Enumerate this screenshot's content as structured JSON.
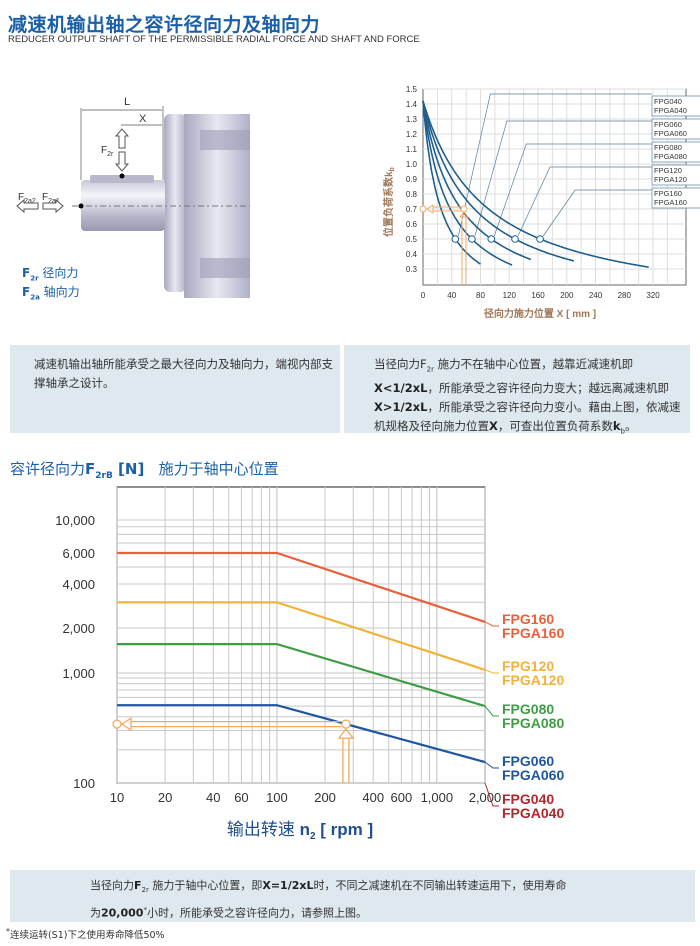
{
  "header": {
    "title": "减速机输出轴之容许径向力及轴向力",
    "subtitle": "REDUCER OUTPUT SHAFT OF THE PERMISSIBLE RADIAL FORCE AND SHAFT AND FORCE"
  },
  "shaft_diagram": {
    "label_L": "L",
    "label_X": "X",
    "label_F2r": "F",
    "label_F2r_sub": "2r",
    "label_F2a2": "F",
    "label_F2a2_sub": "2a2",
    "label_F2a1": "F",
    "label_F2a1_sub": "2a1",
    "legend": [
      {
        "symbol": "F",
        "sub": "2r",
        "text": "径向力"
      },
      {
        "symbol": "F",
        "sub": "2a",
        "text": "轴向力"
      }
    ]
  },
  "info_left": "减速机输出轴所能承受之最大径向力及轴向力，端视内部支撑轴承之设计。",
  "info_right": {
    "l1": "当径向力F",
    "l1_sub": "2r",
    "l1b": " 施力不在轴中心位置，越靠近减速机即",
    "l2_bold": "X<1/2xL",
    "l2": "，所能承受之容许径向力变大；越远离减速机即",
    "l3_bold": "X>1/2xL",
    "l3": "，所能承受之容许径向力变小。藉由上图，依减速机规格及径向施力位置",
    "l3b_bold": "X",
    "l3c": "，可查出位置负荷系数",
    "l3_k": "k",
    "l3_k_sub": "b",
    "l3_end": "。"
  },
  "main_chart_title": {
    "a": "容许径向力",
    "b": "F",
    "b_sub": "2rB",
    "c": " [N]",
    "d": "施力于轴中心位置"
  },
  "chart_data": [
    {
      "type": "line",
      "xlabel": "径向力施力位置 X [ mm ]",
      "ylabel": "位置负荷系数k",
      "ylabel_sub": "b",
      "xlim": [
        0,
        350
      ],
      "ylim": [
        0.2,
        1.5
      ],
      "grid": true,
      "xticks": [
        0,
        40,
        80,
        120,
        160,
        200,
        240,
        280,
        320
      ],
      "yticks": [
        0.3,
        0.4,
        0.5,
        0.6,
        0.7,
        0.8,
        0.9,
        1.0,
        1.1,
        1.2,
        1.3,
        1.4,
        1.5
      ],
      "ytick_labels": [
        "0.3",
        "0.4",
        "0.5",
        "0.6",
        "0.7",
        "0.8",
        "0.9",
        "1.0",
        "1.1",
        "1.2",
        "1.3",
        "1.4",
        "1.5"
      ],
      "series": [
        {
          "name": "FPG040",
          "name2": "FPGA040",
          "start_kb": 1.42,
          "x_at_kb_0_5": 45,
          "x_end": 80
        },
        {
          "name": "FPG060",
          "name2": "FPGA060",
          "start_kb": 1.42,
          "x_at_kb_0_5": 68,
          "x_end": 125
        },
        {
          "name": "FPG080",
          "name2": "FPGA080",
          "start_kb": 1.42,
          "x_at_kb_0_5": 95,
          "x_end": 150
        },
        {
          "name": "FPG120",
          "name2": "FPGA120",
          "start_kb": 1.42,
          "x_at_kb_0_5": 128,
          "x_end": 210
        },
        {
          "name": "FPG160",
          "name2": "FPGA160",
          "start_kb": 1.42,
          "x_at_kb_0_5": 163,
          "x_end": 315
        }
      ],
      "example": {
        "x": 57,
        "kb": 0.7
      },
      "colors": {
        "curve": "#1f5f8f",
        "example": "#f5a860",
        "ylabel": "#a0785a",
        "xlabel": "#a0785a"
      }
    },
    {
      "type": "line",
      "xlabel": "输出转速",
      "xlabel_b": "n",
      "xlabel_sub": "2",
      "xlabel_c": " [ rpm ]",
      "xscale": "log",
      "yscale": "log",
      "xlim": [
        10,
        2000
      ],
      "ylim": [
        100,
        20000
      ],
      "grid": true,
      "xticks": [
        10,
        20,
        40,
        60,
        100,
        200,
        400,
        600,
        1000,
        2000
      ],
      "xtick_labels": [
        "10",
        "20",
        "40",
        "60",
        "100",
        "200",
        "400",
        "600",
        "1,000",
        "2,000"
      ],
      "yticks": [
        100,
        1000,
        2000,
        4000,
        6000,
        10000
      ],
      "ytick_labels": [
        "100",
        "1,000",
        "2,000",
        "4,000",
        "6,000",
        "10,000"
      ],
      "series": [
        {
          "name": "FPG160",
          "name2": "FPGA160",
          "color": "#e8613a",
          "points": [
            [
              10,
              6000
            ],
            [
              100,
              6000
            ],
            [
              2000,
              2200
            ]
          ]
        },
        {
          "name": "FPG120",
          "name2": "FPGA120",
          "color": "#f2b23a",
          "points": [
            [
              10,
              3000
            ],
            [
              100,
              3000
            ],
            [
              2000,
              1050
            ]
          ]
        },
        {
          "name": "FPG080",
          "name2": "FPGA080",
          "color": "#3e9e45",
          "points": [
            [
              10,
              1560
            ],
            [
              100,
              1560
            ],
            [
              2000,
              500
            ]
          ]
        },
        {
          "name": "FPG060",
          "name2": "FPGA060",
          "color": "#1f56a0",
          "points": [
            [
              10,
              510
            ],
            [
              100,
              510
            ],
            [
              2000,
              155
            ]
          ]
        },
        {
          "name": "FPG040",
          "name2": "FPGA040",
          "color": "#b2262e",
          "points": []
        }
      ],
      "example": {
        "n2": 270,
        "force": 343,
        "color": "#f5a860"
      }
    }
  ],
  "bottom_note": {
    "a": "当径向力",
    "b": "F",
    "b_sub": "2r",
    "c": " 施力于轴中心位置，即",
    "d": "X=1/2xL",
    "e": "时，不同之减速机在不同输出转速运用下，使用寿命",
    "f": "为",
    "g": "20,000",
    "g_sup": "*",
    "h": "小时，所能承受之容许径向力，请参照上图。"
  },
  "footnote": {
    "star": "*",
    "text": "连续运转(S1)下之使用寿命降低50%"
  }
}
